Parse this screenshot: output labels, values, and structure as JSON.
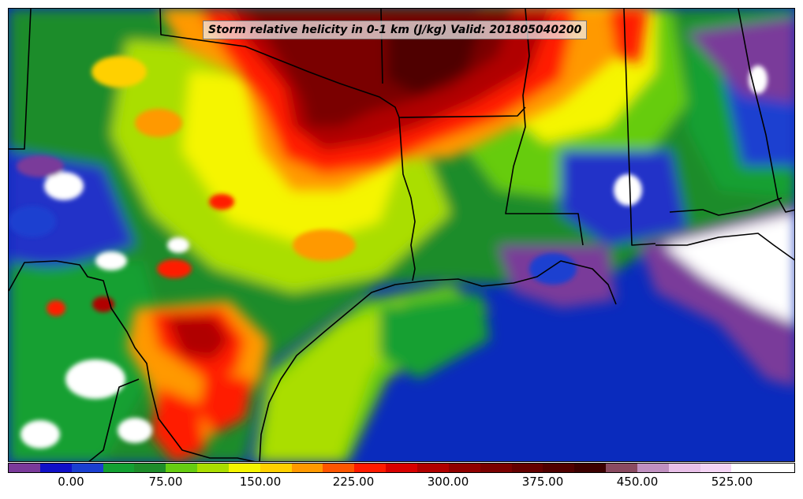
{
  "title": "Storm relative helicity in 0-1 km (J/kg) Valid: 201805040200",
  "colorbar": {
    "colors": [
      "#7a3a9a",
      "#1010c8",
      "#1a3fd0",
      "#13a032",
      "#1e8c2a",
      "#66cc11",
      "#aade00",
      "#f5f500",
      "#ffd000",
      "#ff9900",
      "#ff5500",
      "#ff1a00",
      "#d80000",
      "#b00000",
      "#900000",
      "#7a0000",
      "#640000",
      "#500000",
      "#3c0000",
      "#8a4a60",
      "#c090c0",
      "#e8c0e8",
      "#f4d4f4",
      "#ffffff",
      "#ffffff"
    ],
    "ticks": [
      "0.00",
      "75.00",
      "150.00",
      "225.00",
      "300.00",
      "375.00",
      "450.00",
      "525.00"
    ]
  },
  "legend_colors": {
    "ocean": "#0a2bbd",
    "land_low": "#1e8c2a",
    "land_mid": "#f5f500",
    "high": "#b00000",
    "extreme": "#3c0000",
    "white": "#ffffff",
    "purple": "#7a3a9a"
  }
}
